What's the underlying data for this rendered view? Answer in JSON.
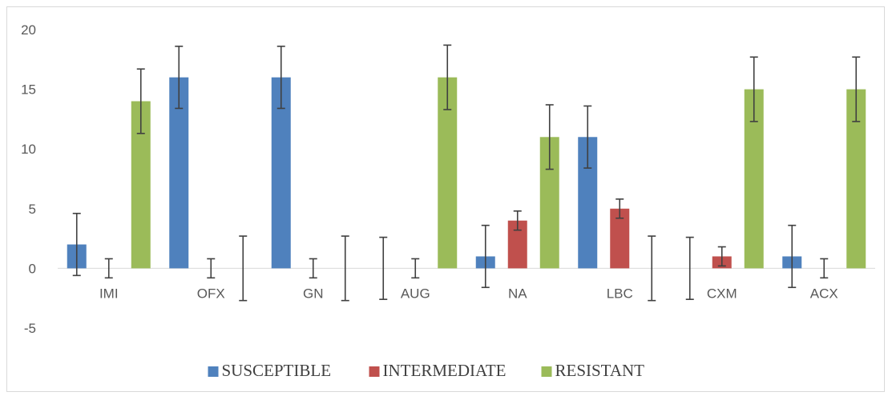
{
  "chart_data": {
    "type": "bar",
    "title": "",
    "xlabel": "",
    "ylabel": "",
    "ylim": [
      -5,
      20
    ],
    "yticks": [
      -5,
      0,
      5,
      10,
      15,
      20
    ],
    "grid": false,
    "legend_position": "bottom",
    "categories": [
      "IMI",
      "OFX",
      "GN",
      "AUG",
      "NA",
      "LBC",
      "CXM",
      "ACX"
    ],
    "series": [
      {
        "name": "SUSCEPTIBLE",
        "color": "#4f81bd",
        "values": [
          2,
          16,
          16,
          0,
          1,
          11,
          0,
          1
        ],
        "error": [
          2.6,
          2.6,
          2.6,
          2.6,
          2.6,
          2.6,
          2.6,
          2.6
        ]
      },
      {
        "name": "INTERMEDIATE",
        "color": "#c0504d",
        "values": [
          0,
          0,
          0,
          0,
          4,
          5,
          1,
          0
        ],
        "error": [
          0.8,
          0.8,
          0.8,
          0.8,
          0.8,
          0.8,
          0.8,
          0.8
        ]
      },
      {
        "name": "RESISTANT",
        "color": "#9bbb59",
        "values": [
          14,
          0,
          0,
          16,
          11,
          0,
          15,
          15
        ],
        "error": [
          2.7,
          2.7,
          2.7,
          2.7,
          2.7,
          2.7,
          2.7,
          2.7
        ]
      }
    ]
  }
}
